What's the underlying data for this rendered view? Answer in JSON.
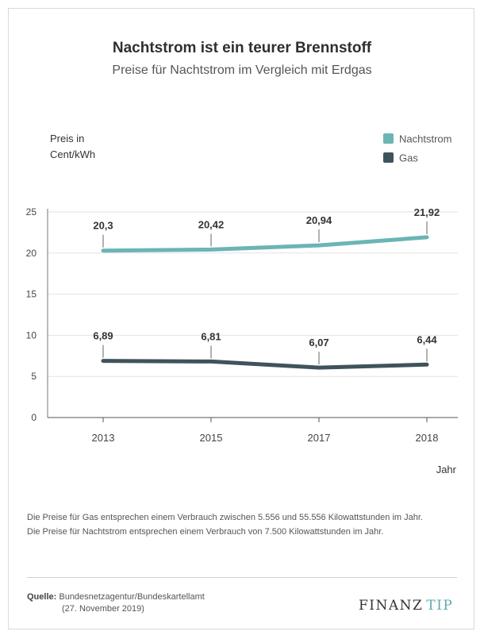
{
  "header": {
    "title": "Nachtstrom ist ein teurer Brennstoff",
    "subtitle": "Preise für Nachtstrom im Vergleich mit Erdgas"
  },
  "chart_data": {
    "type": "line",
    "ylabel_lines": [
      "Preis in",
      "Cent/kWh"
    ],
    "xlabel": "Jahr",
    "categories": [
      "2013",
      "2015",
      "2017",
      "2018"
    ],
    "ylim": [
      0,
      25
    ],
    "yticks": [
      0,
      5,
      10,
      15,
      20,
      25
    ],
    "grid": true,
    "legend_position": "top-right",
    "series": [
      {
        "name": "Nachtstrom",
        "color": "#6bb5b4",
        "values": [
          20.3,
          20.42,
          20.94,
          21.92
        ],
        "labels": [
          "20,3",
          "20,42",
          "20,94",
          "21,92"
        ]
      },
      {
        "name": "Gas",
        "color": "#3f535c",
        "values": [
          6.89,
          6.81,
          6.07,
          6.44
        ],
        "labels": [
          "6,89",
          "6,81",
          "6,07",
          "6,44"
        ]
      }
    ]
  },
  "notes": [
    "Die Preise für Gas entsprechen einem Verbrauch zwischen 5.556 und 55.556 Kilowattstunden im Jahr.",
    "Die Preise für Nachtstrom entsprechen einem Verbrauch von 7.500 Kilowattstunden im Jahr."
  ],
  "source": {
    "label": "Quelle:",
    "text": "Bundesnetzagentur/Bundeskartellamt",
    "date": "(27. November 2019)"
  },
  "logo": {
    "part1": "FINANZ",
    "part2": "TIP"
  }
}
